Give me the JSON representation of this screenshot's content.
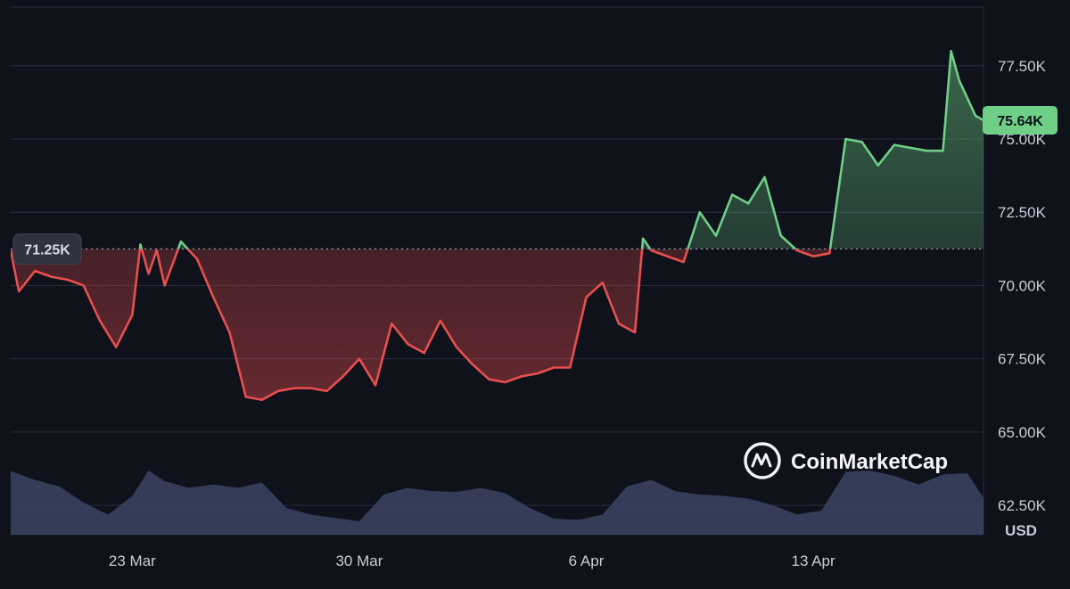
{
  "brand": {
    "name": "CoinMarketCap",
    "logo_icon": "coinmarketcap-logo-icon"
  },
  "currency_label": "USD",
  "colors": {
    "background": "#0f111b",
    "grid": "#2a2e3c",
    "up": "#6fcf86",
    "down": "#e84f4f",
    "volume": "#3c4463",
    "axis_text": "#c9ccd6",
    "reference_badge": "#2f333f",
    "current_badge": "#6fcf86"
  },
  "chart_data": {
    "type": "area",
    "x_type": "date",
    "x_ticks": [
      {
        "date": "2025-03-23",
        "label": "23 Mar"
      },
      {
        "date": "2025-03-30",
        "label": "30 Mar"
      },
      {
        "date": "2025-04-06",
        "label": "6 Apr"
      },
      {
        "date": "2025-04-13",
        "label": "13 Apr"
      }
    ],
    "y_ticks": [
      62500,
      65000,
      67500,
      70000,
      72500,
      75000,
      77500
    ],
    "y_tick_labels": [
      "62.50K",
      "65.00K",
      "67.50K",
      "70.00K",
      "72.50K",
      "75.00K",
      "77.50K"
    ],
    "ylim": [
      61500,
      79500
    ],
    "xlim": [
      "2025-03-19T06:00",
      "2025-04-18T06:00"
    ],
    "grid": true,
    "baseline": {
      "value": 71250,
      "label": "71.25K"
    },
    "current": {
      "value": 75640,
      "label": "75.64K"
    },
    "price": {
      "x": [
        "2025-03-19T06:00",
        "2025-03-19T12:00",
        "2025-03-20T00:00",
        "2025-03-20T12:00",
        "2025-03-21T00:00",
        "2025-03-21T12:00",
        "2025-03-22T00:00",
        "2025-03-22T12:00",
        "2025-03-23T00:00",
        "2025-03-23T06:00",
        "2025-03-23T12:00",
        "2025-03-23T18:00",
        "2025-03-24T00:00",
        "2025-03-24T12:00",
        "2025-03-25T00:00",
        "2025-03-25T12:00",
        "2025-03-26T00:00",
        "2025-03-26T12:00",
        "2025-03-27T00:00",
        "2025-03-27T12:00",
        "2025-03-28T00:00",
        "2025-03-28T12:00",
        "2025-03-29T00:00",
        "2025-03-29T12:00",
        "2025-03-30T00:00",
        "2025-03-30T12:00",
        "2025-03-31T00:00",
        "2025-03-31T12:00",
        "2025-04-01T00:00",
        "2025-04-01T12:00",
        "2025-04-02T00:00",
        "2025-04-02T12:00",
        "2025-04-03T00:00",
        "2025-04-03T12:00",
        "2025-04-04T00:00",
        "2025-04-04T12:00",
        "2025-04-05T00:00",
        "2025-04-05T12:00",
        "2025-04-06T00:00",
        "2025-04-06T12:00",
        "2025-04-07T00:00",
        "2025-04-07T12:00",
        "2025-04-07T18:00",
        "2025-04-08T00:00",
        "2025-04-08T12:00",
        "2025-04-09T00:00",
        "2025-04-09T12:00",
        "2025-04-10T00:00",
        "2025-04-10T12:00",
        "2025-04-11T00:00",
        "2025-04-11T12:00",
        "2025-04-12T00:00",
        "2025-04-12T12:00",
        "2025-04-13T00:00",
        "2025-04-13T12:00",
        "2025-04-14T00:00",
        "2025-04-14T12:00",
        "2025-04-15T00:00",
        "2025-04-15T12:00",
        "2025-04-16T00:00",
        "2025-04-16T12:00",
        "2025-04-17T00:00",
        "2025-04-17T06:00",
        "2025-04-17T12:00",
        "2025-04-18T00:00",
        "2025-04-18T06:00"
      ],
      "values": [
        71200,
        69800,
        70500,
        70300,
        70200,
        70000,
        68800,
        67900,
        69000,
        71400,
        70400,
        71200,
        70000,
        71500,
        70900,
        69600,
        68400,
        66200,
        66100,
        66400,
        66500,
        66500,
        66400,
        66900,
        67500,
        66600,
        68700,
        68000,
        67700,
        68800,
        67900,
        67300,
        66800,
        66700,
        66900,
        67000,
        67200,
        67200,
        69600,
        70100,
        68700,
        68400,
        71600,
        71200,
        71000,
        70800,
        72500,
        71700,
        73100,
        72800,
        73700,
        71700,
        71200,
        71000,
        71100,
        75000,
        74900,
        74100,
        74800,
        74700,
        74600,
        74600,
        78000,
        77000,
        75800,
        75640
      ]
    },
    "volume": {
      "x": [
        "2025-03-19T06:00",
        "2025-03-20T00:00",
        "2025-03-20T18:00",
        "2025-03-21T12:00",
        "2025-03-22T06:00",
        "2025-03-23T00:00",
        "2025-03-23T12:00",
        "2025-03-24T00:00",
        "2025-03-24T18:00",
        "2025-03-25T12:00",
        "2025-03-26T06:00",
        "2025-03-27T00:00",
        "2025-03-27T18:00",
        "2025-03-28T12:00",
        "2025-03-29T06:00",
        "2025-03-30T00:00",
        "2025-03-30T18:00",
        "2025-03-31T12:00",
        "2025-04-01T06:00",
        "2025-04-02T00:00",
        "2025-04-02T18:00",
        "2025-04-03T12:00",
        "2025-04-04T06:00",
        "2025-04-05T00:00",
        "2025-04-05T18:00",
        "2025-04-06T12:00",
        "2025-04-07T06:00",
        "2025-04-08T00:00",
        "2025-04-08T18:00",
        "2025-04-09T12:00",
        "2025-04-10T06:00",
        "2025-04-11T00:00",
        "2025-04-11T18:00",
        "2025-04-12T12:00",
        "2025-04-13T06:00",
        "2025-04-14T00:00",
        "2025-04-14T18:00",
        "2025-04-15T12:00",
        "2025-04-16T06:00",
        "2025-04-17T00:00",
        "2025-04-17T18:00",
        "2025-04-18T06:00"
      ],
      "values": [
        0.95,
        0.82,
        0.72,
        0.48,
        0.3,
        0.58,
        0.96,
        0.8,
        0.7,
        0.75,
        0.7,
        0.78,
        0.4,
        0.3,
        0.25,
        0.2,
        0.6,
        0.7,
        0.65,
        0.64,
        0.7,
        0.62,
        0.4,
        0.24,
        0.22,
        0.3,
        0.72,
        0.82,
        0.65,
        0.6,
        0.58,
        0.54,
        0.44,
        0.3,
        0.36,
        0.94,
        0.96,
        0.88,
        0.75,
        0.9,
        0.92,
        0.55
      ]
    }
  }
}
